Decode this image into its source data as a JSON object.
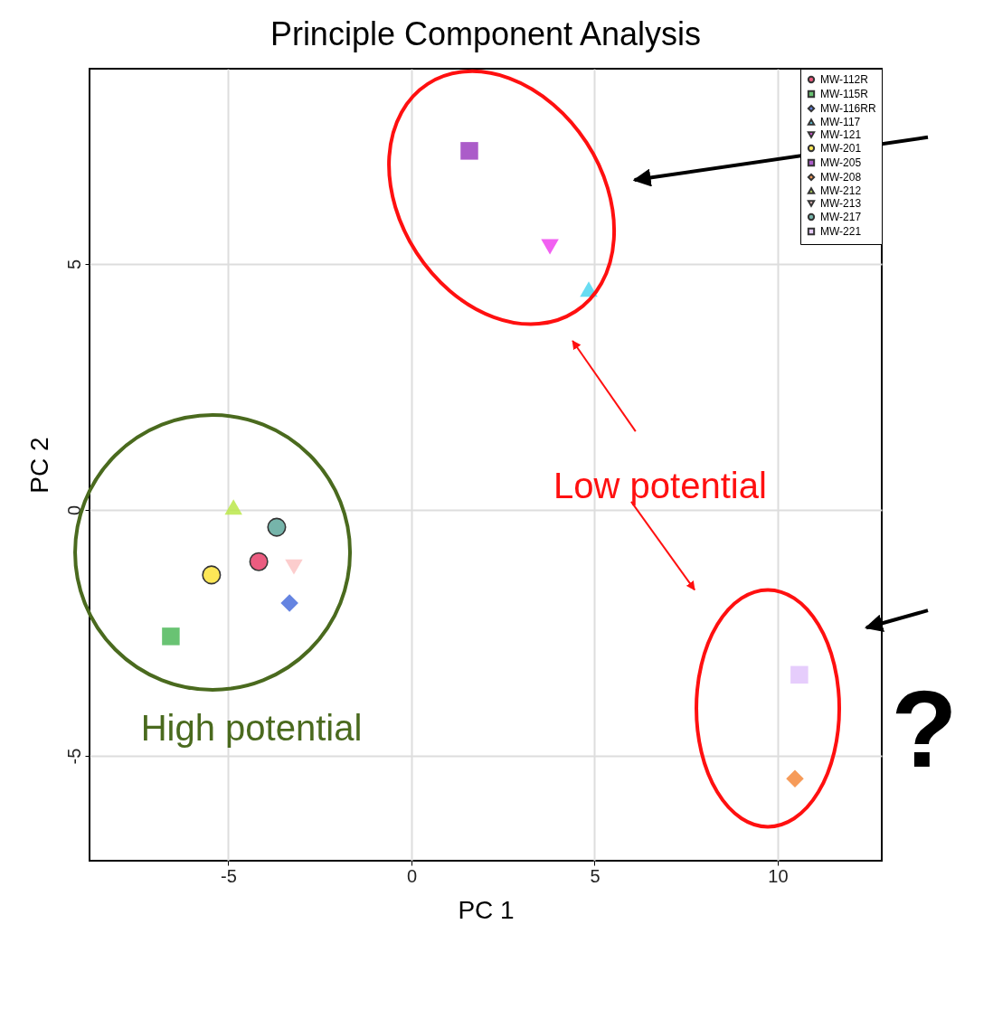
{
  "chart_data": {
    "type": "scatter",
    "title": "Principle Component Analysis",
    "xlabel": "PC 1",
    "ylabel": "PC 2",
    "xlim": [
      -8.79,
      12.84
    ],
    "ylim": [
      -7.13,
      8.97
    ],
    "xticks": [
      -5,
      0,
      5,
      10
    ],
    "yticks": [
      -5,
      0,
      5
    ],
    "grid": true,
    "legend": "top right",
    "annotations": [
      "High potential",
      "Low potential",
      "?"
    ],
    "series": [
      {
        "name": "MW-112R",
        "color": "#e8406a",
        "marker": "circle",
        "x": [
          -4.17
        ],
        "values": [
          -1.05
        ]
      },
      {
        "name": "MW-115R",
        "color": "#4fb85a",
        "marker": "square",
        "x": [
          -6.57
        ],
        "values": [
          -2.57
        ]
      },
      {
        "name": "MW-116RR",
        "color": "#4a6fdc",
        "marker": "diamond",
        "x": [
          -3.33
        ],
        "values": [
          -1.89
        ]
      },
      {
        "name": "MW-117",
        "color": "#4dd6f0",
        "marker": "triangle",
        "x": [
          4.84
        ],
        "values": [
          4.49
        ]
      },
      {
        "name": "MW-121",
        "color": "#ee44ee",
        "marker": "triangle-down",
        "x": [
          3.78
        ],
        "values": [
          5.35
        ]
      },
      {
        "name": "MW-201",
        "color": "#fde33a",
        "marker": "circle",
        "x": [
          -5.46
        ],
        "values": [
          -1.32
        ]
      },
      {
        "name": "MW-205",
        "color": "#9c3fbf",
        "marker": "square",
        "x": [
          1.58
        ],
        "values": [
          7.3
        ]
      },
      {
        "name": "MW-208",
        "color": "#f48a3c",
        "marker": "diamond",
        "x": [
          10.47
        ],
        "values": [
          -5.46
        ]
      },
      {
        "name": "MW-212",
        "color": "#bbe84a",
        "marker": "triangle",
        "x": [
          -4.86
        ],
        "values": [
          0.06
        ]
      },
      {
        "name": "MW-213",
        "color": "#fbc4c4",
        "marker": "triangle-down",
        "x": [
          -3.21
        ],
        "values": [
          -1.16
        ]
      },
      {
        "name": "MW-217",
        "color": "#5fa89c",
        "marker": "circle",
        "x": [
          -3.68
        ],
        "values": [
          -0.35
        ]
      },
      {
        "name": "MW-221",
        "color": "#e2c4fb",
        "marker": "square",
        "x": [
          10.59
        ],
        "values": [
          -3.35
        ]
      }
    ]
  }
}
